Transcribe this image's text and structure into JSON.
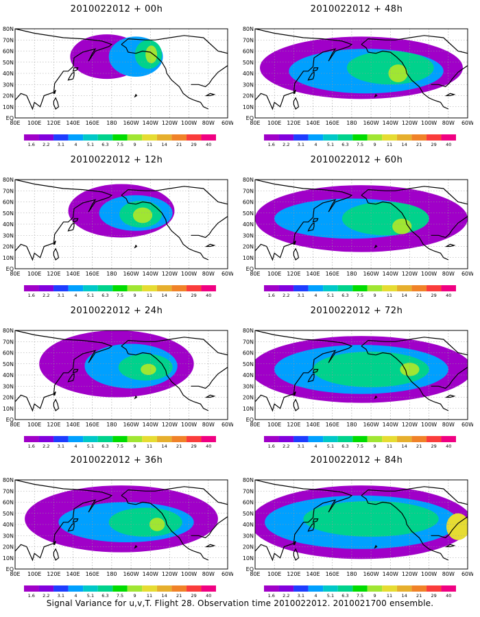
{
  "panels": [
    {
      "title": "2010022012 + 00h"
    },
    {
      "title": "2010022012 + 12h"
    },
    {
      "title": "2010022012 + 24h"
    },
    {
      "title": "2010022012 + 36h"
    },
    {
      "title": "2010022012 + 48h"
    },
    {
      "title": "2010022012 + 60h"
    },
    {
      "title": "2010022012 + 72h"
    },
    {
      "title": "2010022012 + 84h"
    }
  ],
  "lat_labels": [
    "80N",
    "70N",
    "60N",
    "50N",
    "40N",
    "30N",
    "20N",
    "10N",
    "EQ"
  ],
  "lon_labels": [
    "80E",
    "100E",
    "120E",
    "140E",
    "160E",
    "180",
    "160W",
    "140W",
    "120W",
    "100W",
    "80W",
    "60W"
  ],
  "colorbar": {
    "labels": [
      "1.6",
      "2.2",
      "3.1",
      "4",
      "5.1",
      "6.3",
      "7.5",
      "9",
      "11",
      "14",
      "21",
      "29",
      "40"
    ],
    "colors": [
      "#a000c8",
      "#8200dc",
      "#1e3cff",
      "#00a0ff",
      "#00c8c8",
      "#00d28c",
      "#00dc00",
      "#a0e632",
      "#e6dc32",
      "#e6af2d",
      "#f08228",
      "#fa3c3c",
      "#f00082"
    ]
  },
  "footer": "Signal Variance for u,v,T. Flight 28. Observation time 2010022012. 2010021700 ensemble."
}
